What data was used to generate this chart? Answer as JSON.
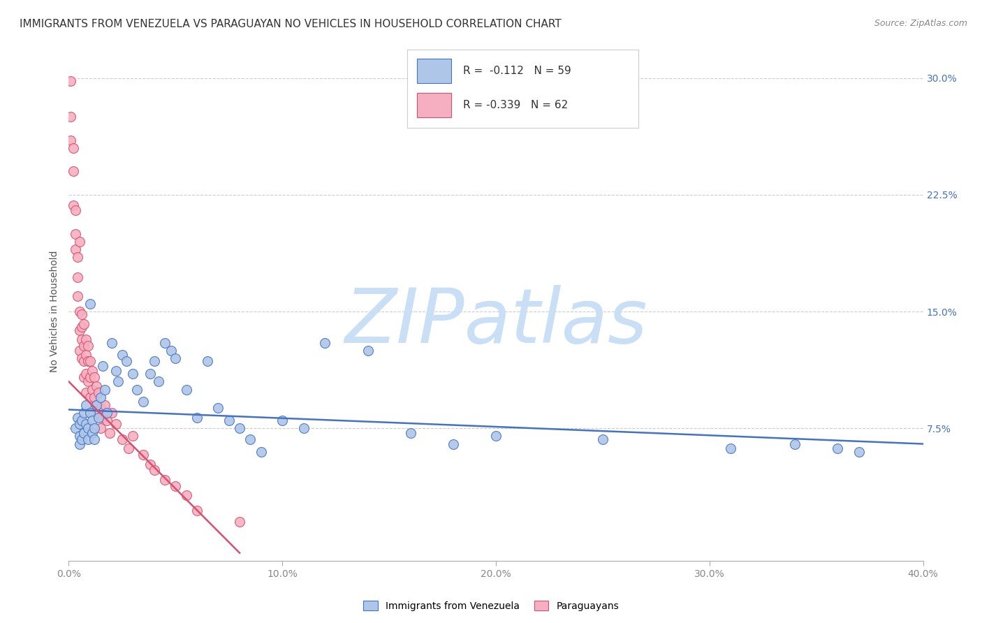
{
  "title": "IMMIGRANTS FROM VENEZUELA VS PARAGUAYAN NO VEHICLES IN HOUSEHOLD CORRELATION CHART",
  "source": "Source: ZipAtlas.com",
  "ylabel": "No Vehicles in Household",
  "xlim": [
    0.0,
    0.4
  ],
  "ylim": [
    -0.01,
    0.31
  ],
  "xticks": [
    0.0,
    0.1,
    0.2,
    0.3,
    0.4
  ],
  "yticks": [
    0.075,
    0.15,
    0.225,
    0.3
  ],
  "ytick_labels": [
    "7.5%",
    "15.0%",
    "22.5%",
    "30.0%"
  ],
  "xtick_labels": [
    "0.0%",
    "10.0%",
    "20.0%",
    "30.0%",
    "40.0%"
  ],
  "blue_label": "Immigrants from Venezuela",
  "pink_label": "Paraguayans",
  "blue_R": -0.112,
  "blue_N": 59,
  "pink_R": -0.339,
  "pink_N": 62,
  "blue_color": "#aec6e8",
  "pink_color": "#f5afc0",
  "blue_line_color": "#4472c4",
  "pink_line_color": "#d94f6e",
  "watermark": "ZIPatlas",
  "watermark_blue": "#c8dff5",
  "watermark_gray": "#b0b8c8",
  "title_fontsize": 11,
  "axis_label_fontsize": 10,
  "tick_fontsize": 10,
  "blue_scatter_x": [
    0.003,
    0.004,
    0.005,
    0.005,
    0.005,
    0.006,
    0.006,
    0.007,
    0.007,
    0.008,
    0.008,
    0.009,
    0.009,
    0.01,
    0.01,
    0.011,
    0.011,
    0.012,
    0.012,
    0.013,
    0.014,
    0.015,
    0.016,
    0.017,
    0.018,
    0.02,
    0.022,
    0.023,
    0.025,
    0.027,
    0.03,
    0.032,
    0.035,
    0.038,
    0.04,
    0.042,
    0.045,
    0.048,
    0.05,
    0.055,
    0.06,
    0.065,
    0.07,
    0.075,
    0.08,
    0.085,
    0.09,
    0.1,
    0.11,
    0.12,
    0.14,
    0.16,
    0.18,
    0.2,
    0.25,
    0.31,
    0.34,
    0.36,
    0.37
  ],
  "blue_scatter_y": [
    0.075,
    0.082,
    0.07,
    0.078,
    0.065,
    0.08,
    0.068,
    0.085,
    0.072,
    0.09,
    0.078,
    0.075,
    0.068,
    0.155,
    0.085,
    0.08,
    0.072,
    0.075,
    0.068,
    0.09,
    0.082,
    0.095,
    0.115,
    0.1,
    0.085,
    0.13,
    0.112,
    0.105,
    0.122,
    0.118,
    0.11,
    0.1,
    0.092,
    0.11,
    0.118,
    0.105,
    0.13,
    0.125,
    0.12,
    0.1,
    0.082,
    0.118,
    0.088,
    0.08,
    0.075,
    0.068,
    0.06,
    0.08,
    0.075,
    0.13,
    0.125,
    0.072,
    0.065,
    0.07,
    0.068,
    0.062,
    0.065,
    0.062,
    0.06
  ],
  "pink_scatter_x": [
    0.001,
    0.001,
    0.001,
    0.002,
    0.002,
    0.002,
    0.003,
    0.003,
    0.003,
    0.004,
    0.004,
    0.004,
    0.005,
    0.005,
    0.005,
    0.005,
    0.006,
    0.006,
    0.006,
    0.006,
    0.007,
    0.007,
    0.007,
    0.007,
    0.008,
    0.008,
    0.008,
    0.008,
    0.009,
    0.009,
    0.009,
    0.01,
    0.01,
    0.01,
    0.01,
    0.011,
    0.011,
    0.012,
    0.012,
    0.013,
    0.013,
    0.014,
    0.014,
    0.015,
    0.015,
    0.016,
    0.017,
    0.018,
    0.019,
    0.02,
    0.022,
    0.025,
    0.028,
    0.03,
    0.035,
    0.038,
    0.04,
    0.045,
    0.05,
    0.055,
    0.06,
    0.08
  ],
  "pink_scatter_y": [
    0.298,
    0.275,
    0.26,
    0.255,
    0.24,
    0.218,
    0.215,
    0.2,
    0.19,
    0.185,
    0.172,
    0.16,
    0.195,
    0.15,
    0.138,
    0.125,
    0.148,
    0.14,
    0.132,
    0.12,
    0.142,
    0.128,
    0.118,
    0.108,
    0.132,
    0.122,
    0.11,
    0.098,
    0.128,
    0.118,
    0.105,
    0.118,
    0.108,
    0.095,
    0.085,
    0.112,
    0.1,
    0.108,
    0.095,
    0.102,
    0.09,
    0.098,
    0.085,
    0.088,
    0.075,
    0.082,
    0.09,
    0.08,
    0.072,
    0.085,
    0.078,
    0.068,
    0.062,
    0.07,
    0.058,
    0.052,
    0.048,
    0.042,
    0.038,
    0.032,
    0.022,
    0.015
  ]
}
